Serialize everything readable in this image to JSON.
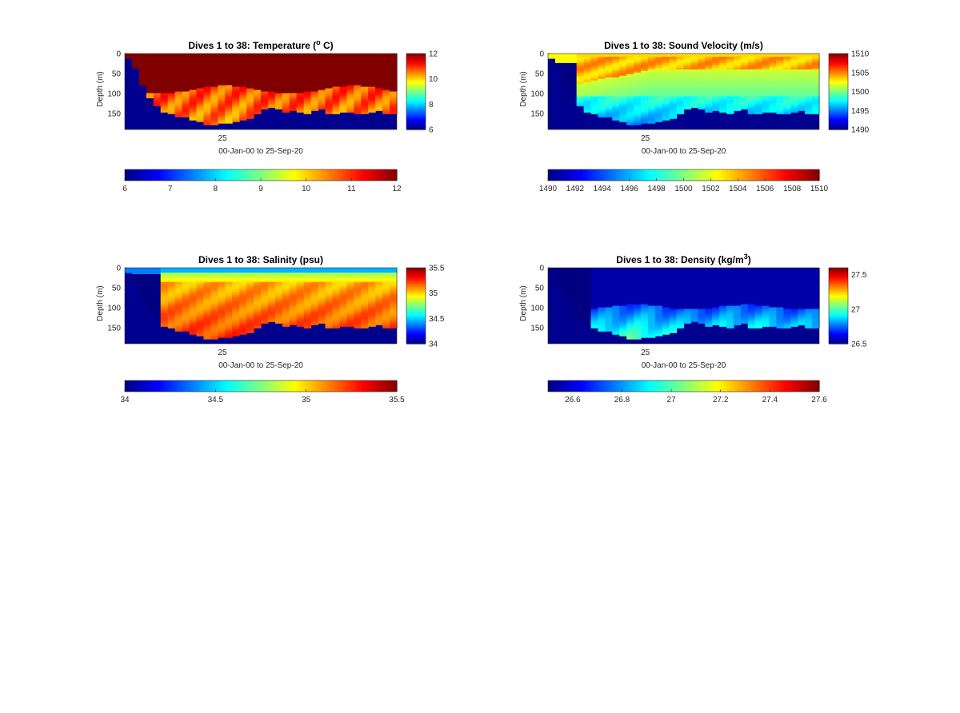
{
  "chart_data": [
    {
      "type": "heatmap",
      "title": "Dives 1 to 38: Temperature (o C)",
      "title_parts": [
        "Dives 1 to 38: Temperature (",
        "o",
        " C)"
      ],
      "title_super": "o",
      "ylabel": "Depth (m)",
      "xlabel": "00-Jan-00 to 25-Sep-20",
      "x_tick_labels": [
        "25"
      ],
      "y_tick_labels": [
        "0",
        "50",
        "100",
        "150"
      ],
      "ylim": [
        0,
        190
      ],
      "y_reversed": true,
      "colormap": "jet",
      "clim": [
        6,
        12
      ],
      "colorbar_right_ticks": [
        "12",
        "10",
        "8",
        "6"
      ],
      "colorbar_bottom_ticks": [
        "6",
        "7",
        "8",
        "9",
        "10",
        "11",
        "12"
      ],
      "description_values": {
        "surface": 12,
        "deep": 10.6,
        "fill": 6
      },
      "grid": false
    },
    {
      "type": "heatmap",
      "title": "Dives 1 to 38: Sound Velocity (m/s)",
      "ylabel": "Depth (m)",
      "xlabel": "00-Jan-00 to 25-Sep-20",
      "x_tick_labels": [
        "25"
      ],
      "y_tick_labels": [
        "0",
        "50",
        "100",
        "150"
      ],
      "ylim": [
        0,
        190
      ],
      "y_reversed": true,
      "colormap": "jet",
      "clim": [
        1490,
        1510
      ],
      "colorbar_right_ticks": [
        "1510",
        "1505",
        "1500",
        "1495",
        "1490"
      ],
      "colorbar_bottom_ticks": [
        "1490",
        "1492",
        "1494",
        "1496",
        "1498",
        "1500",
        "1502",
        "1504",
        "1506",
        "1508",
        "1510"
      ],
      "grid": false
    },
    {
      "type": "heatmap",
      "title": "Dives 1 to 38: Salinity (psu)",
      "ylabel": "Depth (m)",
      "xlabel": "00-Jan-00 to 25-Sep-20",
      "x_tick_labels": [
        "25"
      ],
      "y_tick_labels": [
        "0",
        "50",
        "100",
        "150"
      ],
      "ylim": [
        0,
        190
      ],
      "y_reversed": true,
      "colormap": "jet",
      "clim": [
        34,
        35.5
      ],
      "colorbar_right_ticks": [
        "35.5",
        "35",
        "34.5",
        "34"
      ],
      "colorbar_bottom_ticks": [
        "34",
        "34.5",
        "35",
        "35.5"
      ],
      "grid": false
    },
    {
      "type": "heatmap",
      "title": "Dives 1 to 38: Density (kg/m3)",
      "title_parts": [
        "Dives 1 to 38: Density (kg/m",
        "3",
        ")"
      ],
      "ylabel": "Depth (m)",
      "xlabel": "00-Jan-00 to 25-Sep-20",
      "x_tick_labels": [
        "25"
      ],
      "y_tick_labels": [
        "0",
        "50",
        "100",
        "150"
      ],
      "ylim": [
        0,
        190
      ],
      "y_reversed": true,
      "colormap": "jet",
      "clim": [
        26.5,
        27.6
      ],
      "colorbar_right_ticks": [
        "27.5",
        "27",
        "26.5"
      ],
      "colorbar_bottom_ticks": [
        "26.6",
        "26.8",
        "27",
        "27.2",
        "27.4",
        "27.6"
      ],
      "grid": false
    }
  ],
  "colors": {
    "background": "#ffffff",
    "fill_value": "#00008f",
    "tick_text": "#262626"
  }
}
